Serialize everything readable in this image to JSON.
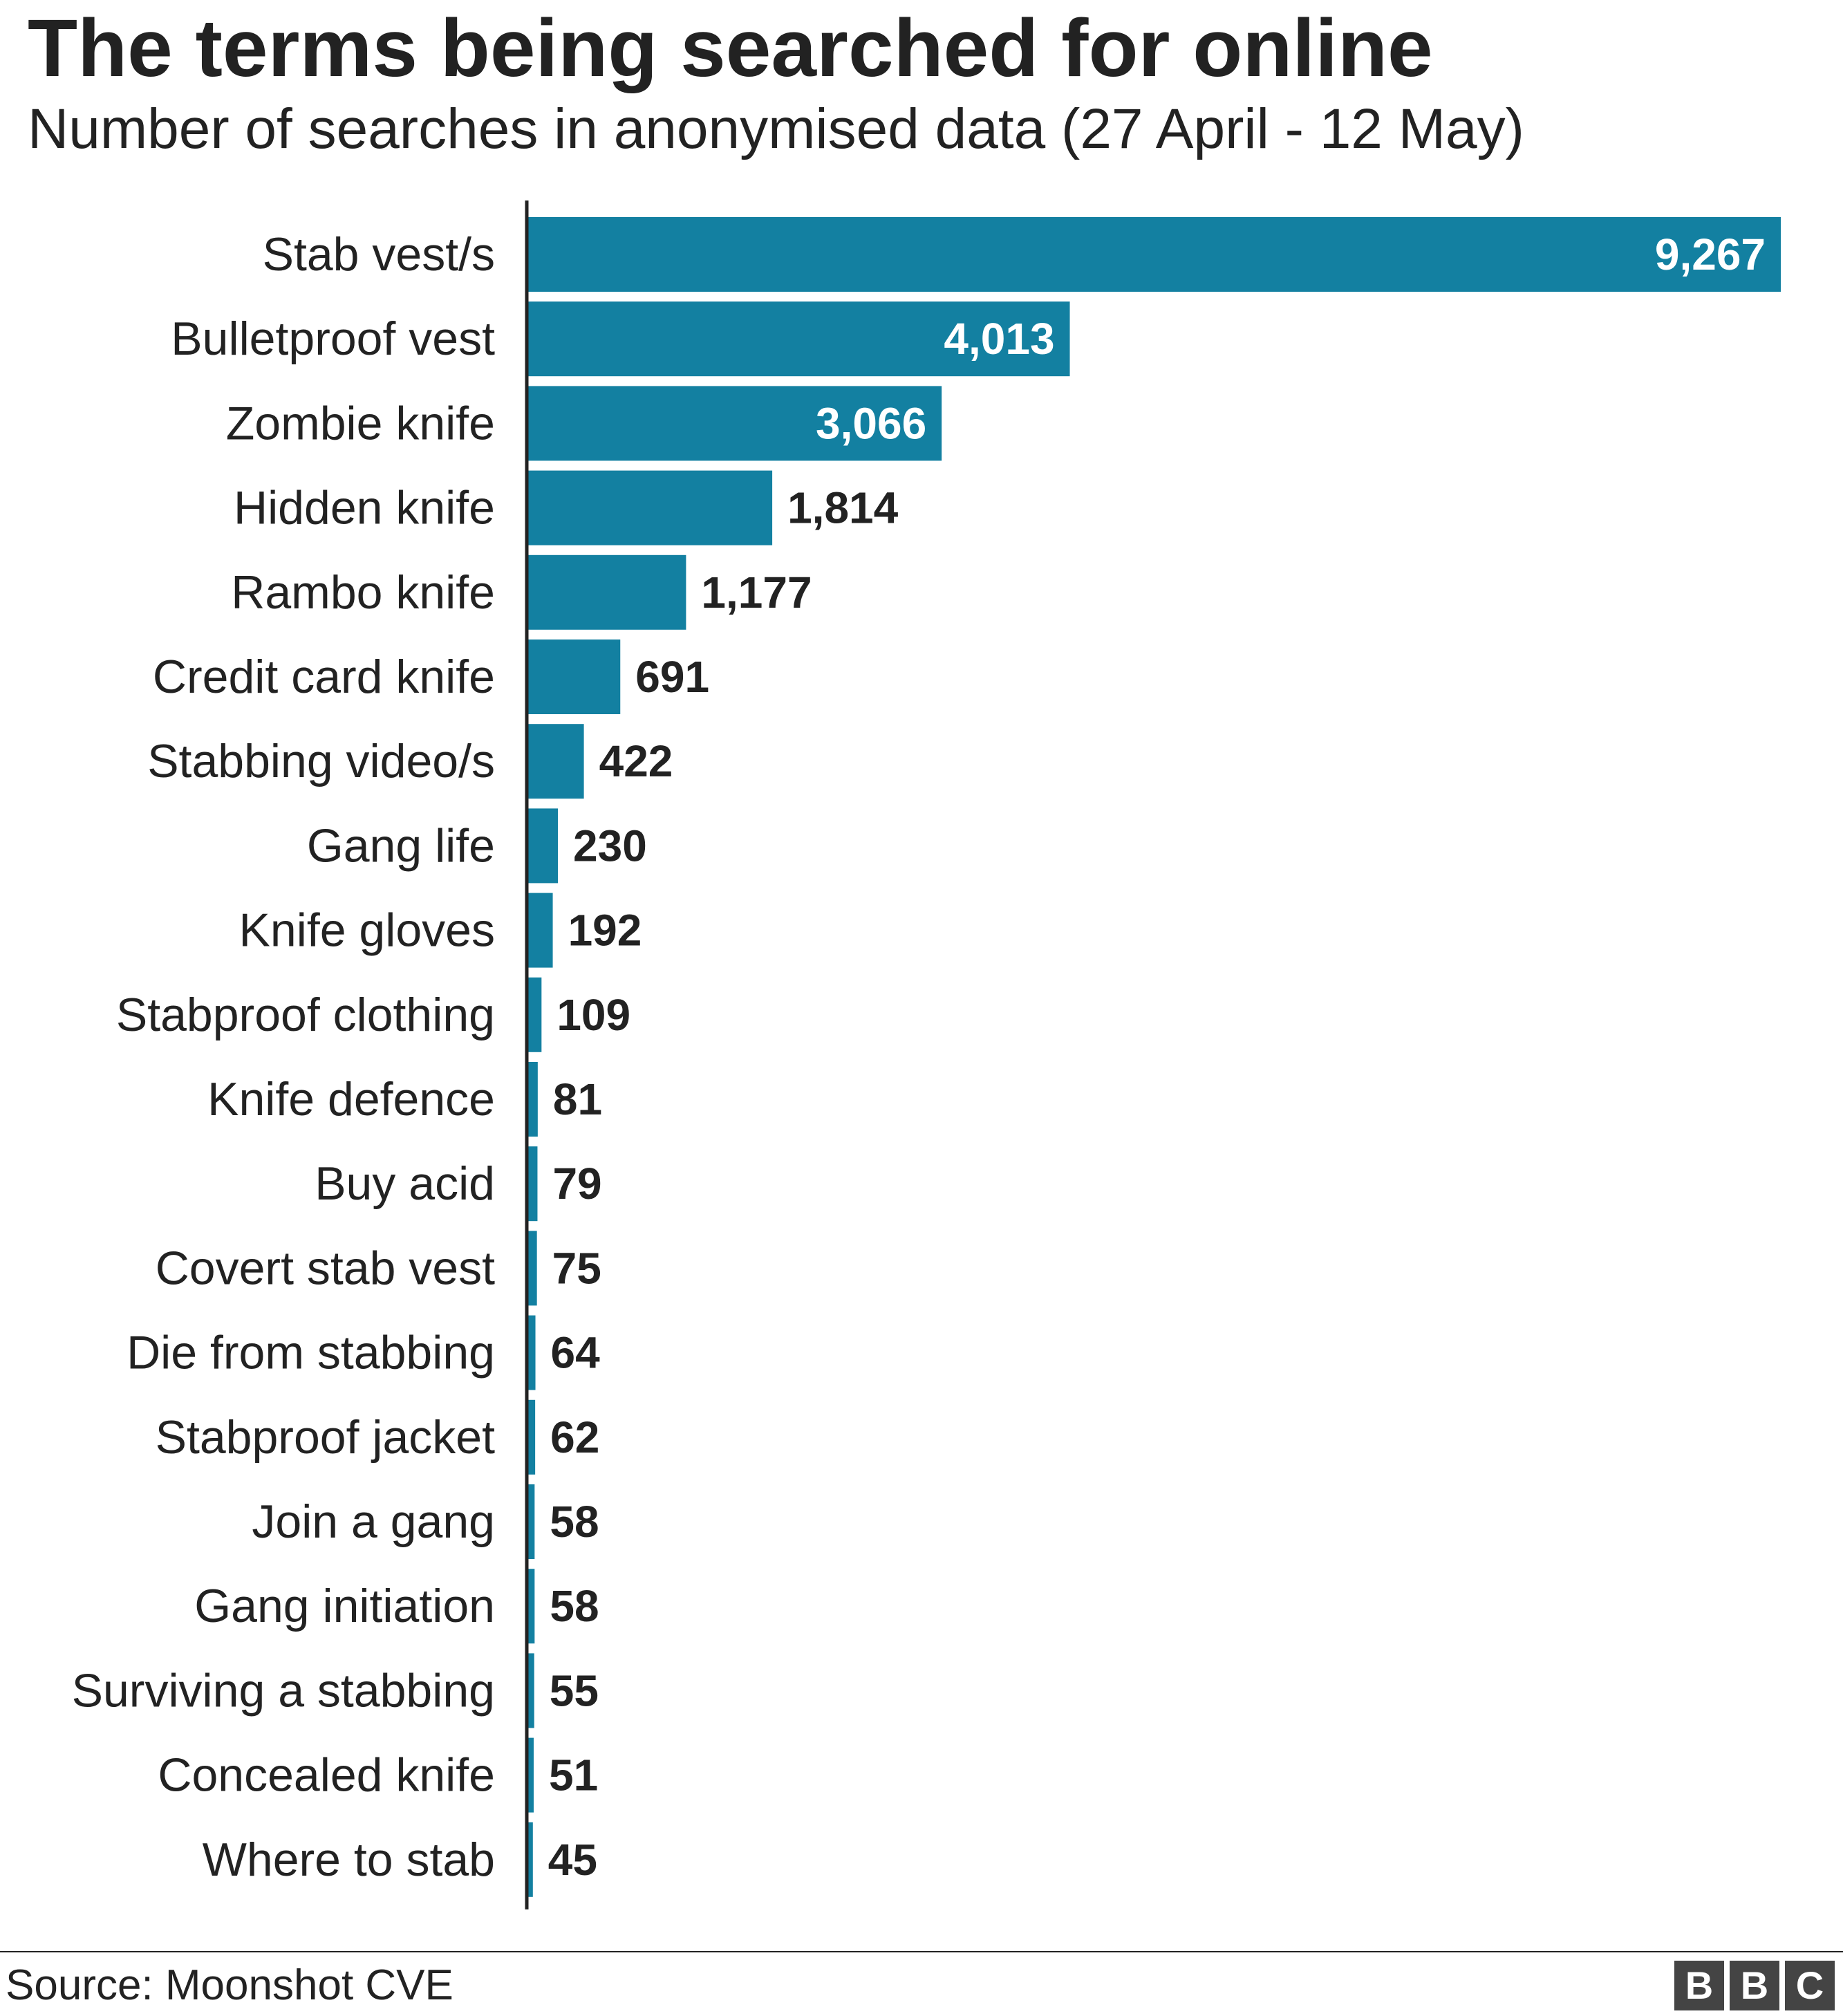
{
  "header": {
    "title": "The terms being searched for online",
    "subtitle": "Number of searches in anonymised data (27 April - 12 May)"
  },
  "footer": {
    "source": "Source: Moonshot CVE",
    "logo": "BBC",
    "logo_letters": [
      "B",
      "B",
      "C"
    ]
  },
  "colors": {
    "bar": "#1380a1",
    "axis": "#222222",
    "label": "#222222",
    "inside_label": "#ffffff"
  },
  "chart_data": {
    "type": "bar",
    "orientation": "horizontal",
    "title": "The terms being searched for online",
    "subtitle": "Number of searches in anonymised data (27 April - 12 May)",
    "grid": false,
    "xlim": [
      0,
      9267
    ],
    "categories": [
      "Stab vest/s",
      "Bulletproof vest",
      "Zombie knife",
      "Hidden knife",
      "Rambo knife",
      "Credit card knife",
      "Stabbing video/s",
      "Gang life",
      "Knife gloves",
      "Stabproof clothing",
      "Knife defence",
      "Buy acid",
      "Covert stab vest",
      "Die from stabbing",
      "Stabproof jacket",
      "Join a gang",
      "Gang initiation",
      "Surviving a stabbing",
      "Concealed knife",
      "Where to stab"
    ],
    "values": [
      9267,
      4013,
      3066,
      1814,
      1177,
      691,
      422,
      230,
      192,
      109,
      81,
      79,
      75,
      64,
      62,
      58,
      58,
      55,
      51,
      45
    ],
    "value_labels": [
      "9,267",
      "4,013",
      "3,066",
      "1,814",
      "1,177",
      "691",
      "422",
      "230",
      "192",
      "109",
      "81",
      "79",
      "75",
      "64",
      "62",
      "58",
      "58",
      "55",
      "51",
      "45"
    ]
  }
}
